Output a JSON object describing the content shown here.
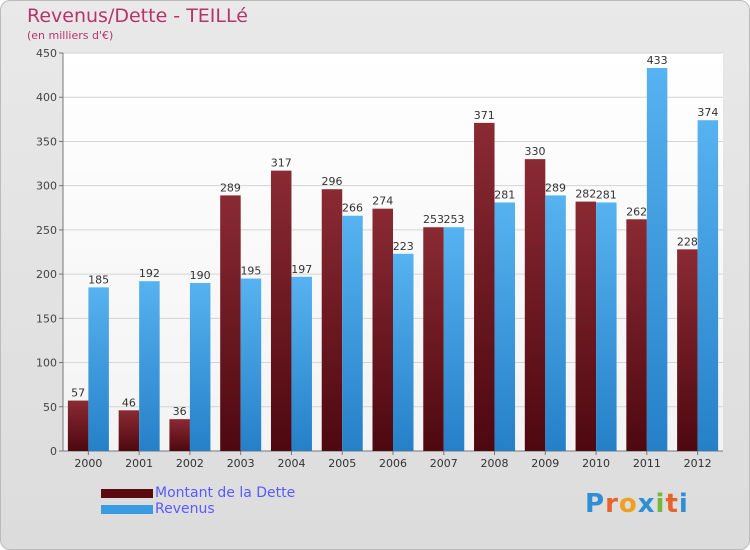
{
  "chart_data": {
    "type": "bar",
    "title": "Revenus/Dette - TEILLé",
    "subtitle": "(en milliers d'€)",
    "xlabel": "",
    "ylabel": "",
    "ylim": [
      0,
      450
    ],
    "yticks": [
      0,
      50,
      100,
      150,
      200,
      250,
      300,
      350,
      400,
      450
    ],
    "grid": true,
    "legend_position": "bottom-left",
    "categories": [
      "2000",
      "2001",
      "2002",
      "2003",
      "2004",
      "2005",
      "2006",
      "2007",
      "2008",
      "2009",
      "2010",
      "2011",
      "2012"
    ],
    "series": [
      {
        "name": "Montant de la Dette",
        "color": "#7a1f28",
        "values": [
          57,
          46,
          36,
          289,
          317,
          296,
          274,
          253,
          371,
          330,
          282,
          262,
          228
        ]
      },
      {
        "name": "Revenus",
        "color": "#3a9be0",
        "values": [
          185,
          192,
          190,
          195,
          197,
          266,
          223,
          253,
          281,
          289,
          281,
          433,
          374
        ]
      }
    ]
  },
  "legend": {
    "items": [
      {
        "label": "Montant de la Dette",
        "color": "#5c0a12"
      },
      {
        "label": "Revenus",
        "color": "#3a9be0"
      }
    ]
  },
  "logo": {
    "letters": [
      "P",
      "r",
      "o",
      "x",
      "i",
      "t",
      "i"
    ],
    "colors": [
      "#2e8fd6",
      "#e8632a",
      "#f0a020",
      "#2e8fd6",
      "#72b83a",
      "#e8632a",
      "#2e8fd6"
    ]
  }
}
